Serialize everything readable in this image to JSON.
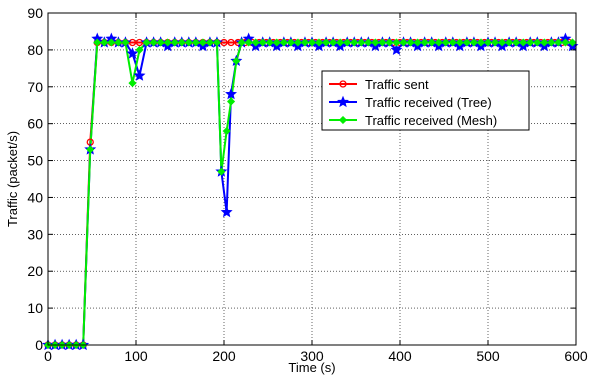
{
  "chart_data": {
    "type": "line",
    "title": "",
    "xlabel": "Time (s)",
    "ylabel": "Traffic (packet/s)",
    "xlim": [
      0,
      600
    ],
    "ylim": [
      0,
      90
    ],
    "xticks": [
      0,
      100,
      200,
      300,
      400,
      500,
      600
    ],
    "yticks": [
      0,
      10,
      20,
      30,
      40,
      50,
      60,
      70,
      80,
      90
    ],
    "xtick_labels": [
      "0",
      "100",
      "200",
      "300",
      "400",
      "500",
      "600"
    ],
    "ytick_labels": [
      "0",
      "10",
      "20",
      "30",
      "40",
      "50",
      "60",
      "70",
      "80",
      "90"
    ],
    "grid": true,
    "legend_position": "right",
    "series": [
      {
        "name": "Traffic sent",
        "color": "#ff0000",
        "marker": "circle",
        "points": [
          [
            0,
            0
          ],
          [
            8,
            0
          ],
          [
            16,
            0
          ],
          [
            24,
            0
          ],
          [
            32,
            0
          ],
          [
            40,
            0
          ],
          [
            48,
            55
          ],
          [
            56,
            82
          ],
          [
            64,
            82
          ],
          [
            72,
            82
          ],
          [
            80,
            82
          ],
          [
            88,
            82
          ],
          [
            96,
            82
          ],
          [
            104,
            82
          ],
          [
            112,
            82
          ],
          [
            120,
            82
          ],
          [
            128,
            82
          ],
          [
            136,
            82
          ],
          [
            144,
            82
          ],
          [
            152,
            82
          ],
          [
            160,
            82
          ],
          [
            168,
            82
          ],
          [
            176,
            82
          ],
          [
            184,
            82
          ],
          [
            192,
            82
          ],
          [
            200,
            82
          ],
          [
            208,
            82
          ],
          [
            216,
            82
          ],
          [
            224,
            82
          ],
          [
            232,
            82
          ],
          [
            240,
            82
          ],
          [
            248,
            82
          ],
          [
            256,
            82
          ],
          [
            264,
            82
          ],
          [
            272,
            82
          ],
          [
            280,
            82
          ],
          [
            288,
            82
          ],
          [
            296,
            82
          ],
          [
            304,
            82
          ],
          [
            312,
            82
          ],
          [
            320,
            82
          ],
          [
            328,
            82
          ],
          [
            336,
            82
          ],
          [
            344,
            82
          ],
          [
            352,
            82
          ],
          [
            360,
            82
          ],
          [
            368,
            82
          ],
          [
            376,
            82
          ],
          [
            384,
            82
          ],
          [
            392,
            82
          ],
          [
            400,
            82
          ],
          [
            408,
            82
          ],
          [
            416,
            82
          ],
          [
            424,
            82
          ],
          [
            432,
            82
          ],
          [
            440,
            82
          ],
          [
            448,
            82
          ],
          [
            456,
            82
          ],
          [
            464,
            82
          ],
          [
            472,
            82
          ],
          [
            480,
            82
          ],
          [
            488,
            82
          ],
          [
            496,
            82
          ],
          [
            504,
            82
          ],
          [
            512,
            82
          ],
          [
            520,
            82
          ],
          [
            528,
            82
          ],
          [
            536,
            82
          ],
          [
            544,
            82
          ],
          [
            552,
            82
          ],
          [
            560,
            82
          ],
          [
            568,
            82
          ],
          [
            576,
            82
          ],
          [
            584,
            82
          ],
          [
            592,
            82
          ]
        ]
      },
      {
        "name": "Traffic received (Tree)",
        "color": "#0000ff",
        "marker": "star",
        "points": [
          [
            0,
            0
          ],
          [
            8,
            0
          ],
          [
            16,
            0
          ],
          [
            24,
            0
          ],
          [
            32,
            0
          ],
          [
            40,
            0
          ],
          [
            48,
            53
          ],
          [
            56,
            83
          ],
          [
            64,
            82
          ],
          [
            72,
            83
          ],
          [
            80,
            82
          ],
          [
            88,
            82
          ],
          [
            96,
            79
          ],
          [
            104,
            73
          ],
          [
            112,
            82
          ],
          [
            120,
            82
          ],
          [
            128,
            82
          ],
          [
            136,
            81
          ],
          [
            144,
            82
          ],
          [
            152,
            82
          ],
          [
            160,
            82
          ],
          [
            168,
            82
          ],
          [
            176,
            81
          ],
          [
            184,
            82
          ],
          [
            192,
            82
          ],
          [
            197,
            47
          ],
          [
            203,
            36
          ],
          [
            208,
            68
          ],
          [
            214,
            77
          ],
          [
            220,
            82
          ],
          [
            228,
            83
          ],
          [
            236,
            81
          ],
          [
            244,
            82
          ],
          [
            252,
            82
          ],
          [
            260,
            81
          ],
          [
            268,
            82
          ],
          [
            276,
            82
          ],
          [
            284,
            81
          ],
          [
            292,
            82
          ],
          [
            300,
            82
          ],
          [
            308,
            81
          ],
          [
            316,
            82
          ],
          [
            324,
            82
          ],
          [
            332,
            81
          ],
          [
            340,
            82
          ],
          [
            348,
            82
          ],
          [
            356,
            82
          ],
          [
            364,
            82
          ],
          [
            372,
            81
          ],
          [
            380,
            82
          ],
          [
            388,
            82
          ],
          [
            396,
            80
          ],
          [
            404,
            82
          ],
          [
            412,
            82
          ],
          [
            420,
            81
          ],
          [
            428,
            82
          ],
          [
            436,
            82
          ],
          [
            444,
            81
          ],
          [
            452,
            82
          ],
          [
            460,
            82
          ],
          [
            468,
            81
          ],
          [
            476,
            82
          ],
          [
            484,
            82
          ],
          [
            492,
            81
          ],
          [
            500,
            82
          ],
          [
            508,
            82
          ],
          [
            516,
            81
          ],
          [
            524,
            82
          ],
          [
            532,
            82
          ],
          [
            540,
            81
          ],
          [
            548,
            82
          ],
          [
            556,
            82
          ],
          [
            564,
            81
          ],
          [
            572,
            82
          ],
          [
            580,
            82
          ],
          [
            588,
            83
          ],
          [
            596,
            81
          ]
        ]
      },
      {
        "name": "Traffic received (Mesh)",
        "color": "#00ee00",
        "marker": "diamond",
        "points": [
          [
            0,
            0
          ],
          [
            8,
            0
          ],
          [
            16,
            0
          ],
          [
            24,
            0
          ],
          [
            32,
            0
          ],
          [
            40,
            0
          ],
          [
            48,
            53
          ],
          [
            56,
            82
          ],
          [
            64,
            82
          ],
          [
            72,
            82
          ],
          [
            80,
            82
          ],
          [
            88,
            82
          ],
          [
            96,
            71
          ],
          [
            104,
            80
          ],
          [
            112,
            82
          ],
          [
            120,
            82
          ],
          [
            128,
            82
          ],
          [
            136,
            82
          ],
          [
            144,
            82
          ],
          [
            152,
            82
          ],
          [
            160,
            82
          ],
          [
            168,
            82
          ],
          [
            176,
            82
          ],
          [
            184,
            82
          ],
          [
            192,
            82
          ],
          [
            197,
            47
          ],
          [
            203,
            58
          ],
          [
            208,
            66
          ],
          [
            214,
            77
          ],
          [
            220,
            82
          ],
          [
            228,
            82
          ],
          [
            236,
            82
          ],
          [
            244,
            82
          ],
          [
            252,
            82
          ],
          [
            260,
            82
          ],
          [
            268,
            82
          ],
          [
            276,
            82
          ],
          [
            284,
            82
          ],
          [
            292,
            82
          ],
          [
            300,
            82
          ],
          [
            308,
            82
          ],
          [
            316,
            82
          ],
          [
            324,
            82
          ],
          [
            332,
            82
          ],
          [
            340,
            82
          ],
          [
            348,
            82
          ],
          [
            356,
            82
          ],
          [
            364,
            82
          ],
          [
            372,
            82
          ],
          [
            380,
            82
          ],
          [
            388,
            82
          ],
          [
            396,
            82
          ],
          [
            404,
            82
          ],
          [
            412,
            82
          ],
          [
            420,
            82
          ],
          [
            428,
            82
          ],
          [
            436,
            82
          ],
          [
            444,
            82
          ],
          [
            452,
            82
          ],
          [
            460,
            82
          ],
          [
            468,
            82
          ],
          [
            476,
            82
          ],
          [
            484,
            82
          ],
          [
            492,
            82
          ],
          [
            500,
            82
          ],
          [
            508,
            82
          ],
          [
            516,
            82
          ],
          [
            524,
            82
          ],
          [
            532,
            82
          ],
          [
            540,
            82
          ],
          [
            548,
            82
          ],
          [
            556,
            82
          ],
          [
            564,
            82
          ],
          [
            572,
            82
          ],
          [
            580,
            82
          ],
          [
            588,
            82
          ],
          [
            596,
            82
          ]
        ]
      }
    ]
  }
}
